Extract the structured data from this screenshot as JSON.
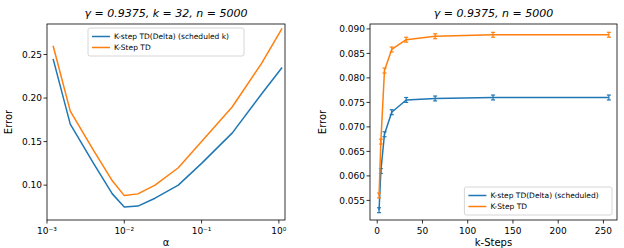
{
  "chart_data": [
    {
      "type": "line",
      "title": "γ = 0.9375, k = 32, n = 5000",
      "x_label": "α",
      "y_label": "Error",
      "log": "x",
      "legend": "upper center",
      "grid": false,
      "x": [
        0.0012,
        0.002,
        0.004,
        0.007,
        0.01,
        0.015,
        0.025,
        0.05,
        0.1,
        0.25,
        0.6,
        1.1
      ],
      "xlim": [
        0.001,
        1.2
      ],
      "xticks": [
        {
          "value": 0.001,
          "label": "10⁻³"
        },
        {
          "value": 0.01,
          "label": "10⁻²"
        },
        {
          "value": 0.1,
          "label": "10⁻¹"
        },
        {
          "value": 1,
          "label": "10⁰"
        }
      ],
      "ylim": [
        0.06,
        0.285
      ],
      "yticks": [
        {
          "value": 0.1,
          "label": "0.10"
        },
        0.15,
        {
          "value": 0.2,
          "label": "0.20"
        },
        0.25
      ],
      "series": [
        {
          "name": "K-step TD(Delta) (scheduled k)",
          "color": "#1f77b4",
          "values": [
            0.245,
            0.17,
            0.125,
            0.09,
            0.075,
            0.076,
            0.085,
            0.1,
            0.125,
            0.16,
            0.205,
            0.235
          ]
        },
        {
          "name": "K-Step TD",
          "color": "#ff7f0e",
          "values": [
            0.26,
            0.185,
            0.14,
            0.105,
            0.088,
            0.09,
            0.1,
            0.12,
            0.15,
            0.19,
            0.24,
            0.28
          ]
        }
      ]
    },
    {
      "type": "line",
      "title": "γ = 0.9375, n = 5000",
      "x_label": "k-Steps",
      "y_label": "Error",
      "legend": "lower right",
      "grid": false,
      "x": [
        2,
        4,
        8,
        16,
        32,
        64,
        128,
        256
      ],
      "xlim": [
        -8,
        265
      ],
      "xticks": [
        0,
        50,
        100,
        150,
        200,
        250
      ],
      "ylim": [
        0.051,
        0.091
      ],
      "yticks": [
        0.055,
        {
          "value": 0.06,
          "label": "0.060"
        },
        0.065,
        {
          "value": 0.07,
          "label": "0.070"
        },
        0.075,
        {
          "value": 0.08,
          "label": "0.080"
        },
        0.085,
        {
          "value": 0.09,
          "label": "0.090"
        }
      ],
      "series": [
        {
          "name": "K-step TD(Delta) (scheduled)",
          "color": "#1f77b4",
          "values": [
            0.053,
            0.061,
            0.0685,
            0.073,
            0.0755,
            0.0758,
            0.076,
            0.076
          ],
          "errors": [
            0.0005,
            0.0005,
            0.0005,
            0.0005,
            0.0005,
            0.0005,
            0.0005,
            0.0005
          ]
        },
        {
          "name": "K-Step TD",
          "color": "#ff7f0e",
          "values": [
            0.056,
            0.067,
            0.0815,
            0.0858,
            0.0878,
            0.0885,
            0.0888,
            0.0888
          ],
          "errors": [
            0.0005,
            0.0005,
            0.0005,
            0.0005,
            0.0005,
            0.0005,
            0.0005,
            0.0005
          ]
        }
      ]
    }
  ]
}
